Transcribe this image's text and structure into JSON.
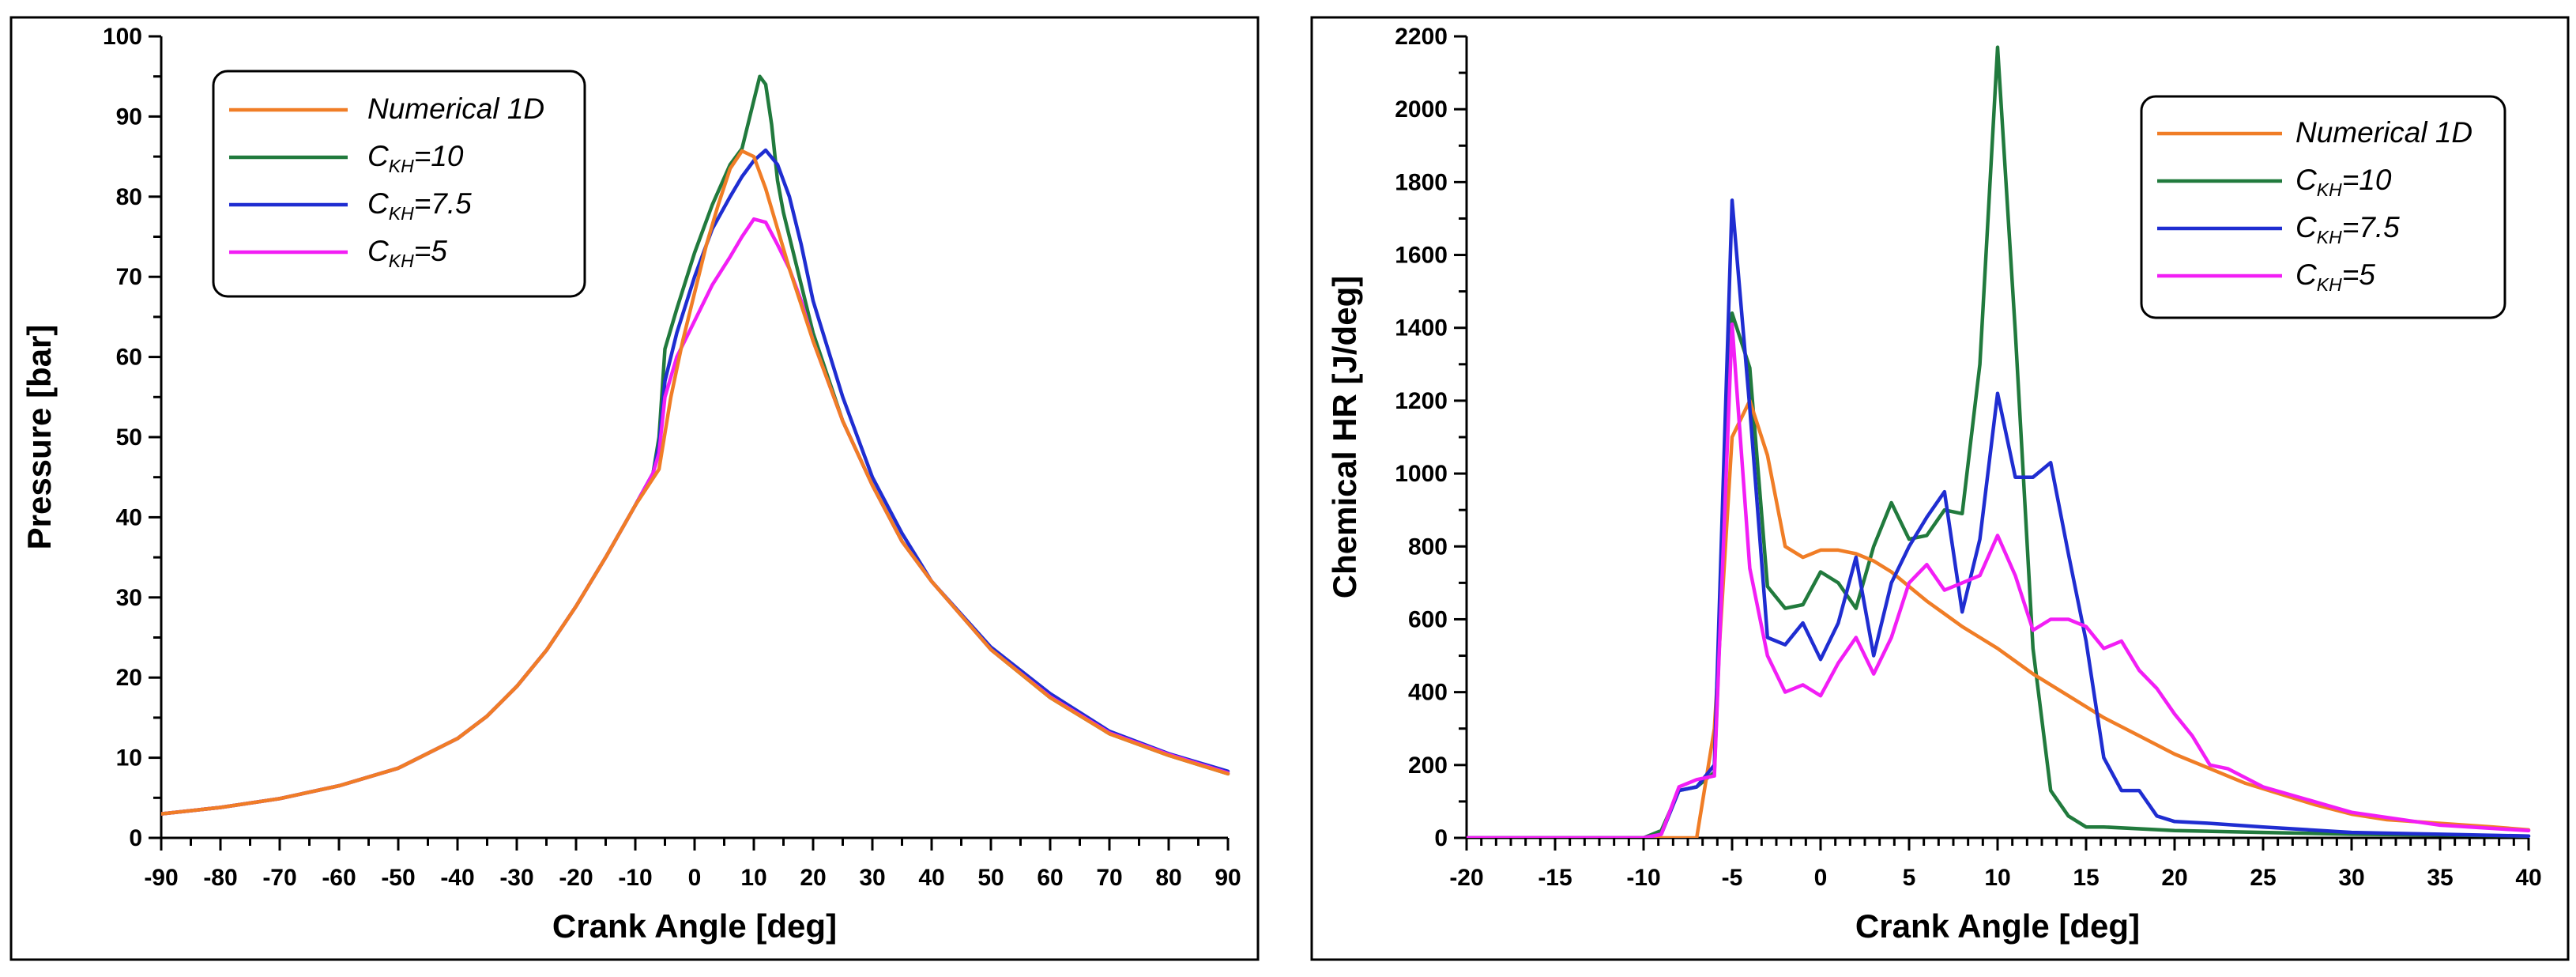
{
  "chart_data": [
    {
      "type": "line",
      "xlabel": "Crank Angle [deg]",
      "ylabel": "Pressure [bar]",
      "xlim": [
        -90,
        90
      ],
      "ylim": [
        0,
        100
      ],
      "xticks": [
        -90,
        -80,
        -70,
        -60,
        -50,
        -40,
        -30,
        -20,
        -10,
        0,
        10,
        20,
        30,
        40,
        50,
        60,
        70,
        80,
        90
      ],
      "yticks": [
        0,
        10,
        20,
        30,
        40,
        50,
        60,
        70,
        80,
        90,
        100
      ],
      "legend_position": "top-left",
      "series": [
        {
          "name": "Numerical 1D",
          "label_main": "Numerical 1D",
          "label_sub": "",
          "label_tail": "",
          "color": "#f07d26",
          "x": [
            -90,
            -80,
            -70,
            -60,
            -50,
            -40,
            -35,
            -30,
            -25,
            -20,
            -15,
            -10,
            -6,
            -4,
            -2,
            0,
            2,
            4,
            6,
            8,
            10,
            12,
            14,
            16,
            20,
            25,
            30,
            35,
            40,
            50,
            60,
            70,
            80,
            90
          ],
          "y": [
            3,
            3.8,
            4.9,
            6.5,
            8.7,
            12.4,
            15.2,
            18.9,
            23.4,
            28.9,
            35,
            41.5,
            46,
            55,
            62,
            68,
            74,
            79,
            83.5,
            85.7,
            85,
            81,
            76,
            71,
            62,
            52,
            44,
            37,
            32,
            23.5,
            17.5,
            13,
            10.3,
            8
          ]
        },
        {
          "name": "C_KH=10",
          "label_main": "C",
          "label_sub": "KH",
          "label_tail": "=10",
          "color": "#217a3d",
          "x": [
            -90,
            -80,
            -70,
            -60,
            -50,
            -40,
            -35,
            -30,
            -25,
            -20,
            -15,
            -10,
            -7,
            -6,
            -5,
            -3,
            0,
            3,
            6,
            8,
            10,
            11,
            12,
            13,
            14,
            15,
            17,
            20,
            25,
            30,
            35,
            40,
            50,
            60,
            70,
            80,
            90
          ],
          "y": [
            3,
            3.8,
            4.9,
            6.5,
            8.7,
            12.4,
            15.2,
            18.9,
            23.4,
            28.9,
            35,
            41.5,
            45.5,
            50,
            61,
            66,
            73,
            79,
            84,
            86,
            92,
            95,
            94,
            89,
            82,
            78,
            72,
            63,
            52,
            44,
            37,
            32,
            23.5,
            17.5,
            13,
            10.3,
            8
          ]
        },
        {
          "name": "C_KH=7.5",
          "label_main": "C",
          "label_sub": "KH",
          "label_tail": "=7.5",
          "color": "#1f2dd1",
          "x": [
            -90,
            -80,
            -70,
            -60,
            -50,
            -40,
            -35,
            -30,
            -25,
            -20,
            -15,
            -10,
            -7,
            -6,
            -5,
            -3,
            0,
            3,
            6,
            8,
            10,
            12,
            14,
            16,
            18,
            20,
            25,
            30,
            35,
            40,
            50,
            60,
            70,
            80,
            90
          ],
          "y": [
            3,
            3.8,
            4.9,
            6.5,
            8.7,
            12.4,
            15.2,
            18.9,
            23.4,
            28.9,
            35,
            41.5,
            45.5,
            49,
            57,
            63,
            70,
            76,
            80,
            82.5,
            84.5,
            85.8,
            84,
            80,
            74,
            67,
            55,
            45,
            38,
            32,
            23.8,
            18,
            13.3,
            10.5,
            8.3
          ]
        },
        {
          "name": "C_KH=5",
          "label_main": "C",
          "label_sub": "KH",
          "label_tail": "=5",
          "color": "#f21ef5",
          "x": [
            -90,
            -80,
            -70,
            -60,
            -50,
            -40,
            -35,
            -30,
            -25,
            -20,
            -15,
            -10,
            -7,
            -6,
            -5,
            -3,
            0,
            3,
            6,
            8,
            10,
            12,
            14,
            16,
            18,
            20,
            25,
            30,
            35,
            40,
            50,
            60,
            70,
            80,
            90
          ],
          "y": [
            3,
            3.8,
            4.9,
            6.5,
            8.7,
            12.4,
            15.2,
            18.9,
            23.4,
            28.9,
            35,
            41.5,
            45.5,
            48,
            55,
            60,
            64.5,
            69,
            72.5,
            75,
            77.2,
            76.8,
            74,
            71,
            67,
            62,
            52,
            44,
            37,
            32,
            23.5,
            17.6,
            13.1,
            10.4,
            8.1
          ]
        }
      ]
    },
    {
      "type": "line",
      "xlabel": "Crank Angle [deg]",
      "ylabel": "Chemical HR [J/deg]",
      "xlim": [
        -20,
        40
      ],
      "ylim": [
        0,
        2200
      ],
      "xticks": [
        -20,
        -15,
        -10,
        -5,
        0,
        5,
        10,
        15,
        20,
        25,
        30,
        35,
        40
      ],
      "yticks": [
        0,
        200,
        400,
        600,
        800,
        1000,
        1200,
        1400,
        1600,
        1800,
        2000,
        2200
      ],
      "legend_position": "top-right",
      "series": [
        {
          "name": "Numerical 1D",
          "label_main": "Numerical 1D",
          "label_sub": "",
          "label_tail": "",
          "color": "#f07d26",
          "x": [
            -20,
            -8,
            -7,
            -6,
            -5,
            -4,
            -3,
            -2,
            -1,
            0,
            1,
            2,
            3,
            4,
            5,
            6,
            7,
            8,
            9,
            10,
            12,
            14,
            16,
            18,
            20,
            22,
            24,
            26,
            28,
            30,
            32,
            35,
            38,
            40
          ],
          "y": [
            0,
            0,
            0,
            300,
            1100,
            1200,
            1050,
            800,
            770,
            790,
            790,
            780,
            760,
            730,
            690,
            650,
            615,
            580,
            550,
            520,
            450,
            390,
            330,
            280,
            230,
            190,
            150,
            120,
            90,
            65,
            50,
            40,
            30,
            22
          ]
        },
        {
          "name": "C_KH=10",
          "label_main": "C",
          "label_sub": "KH",
          "label_tail": "=10",
          "color": "#217a3d",
          "x": [
            -20,
            -10,
            -9,
            -8,
            -7,
            -6,
            -5,
            -4,
            -3,
            -2,
            -1,
            0,
            1,
            2,
            3,
            4,
            5,
            6,
            7,
            8,
            9,
            10,
            11,
            12,
            13,
            14,
            15,
            16,
            20,
            25,
            30,
            35,
            40
          ],
          "y": [
            0,
            0,
            20,
            130,
            140,
            180,
            1440,
            1290,
            690,
            630,
            640,
            730,
            700,
            630,
            800,
            920,
            820,
            830,
            900,
            890,
            1300,
            2170,
            1390,
            520,
            130,
            60,
            30,
            30,
            20,
            15,
            10,
            8,
            5
          ]
        },
        {
          "name": "C_KH=7.5",
          "label_main": "C",
          "label_sub": "KH",
          "label_tail": "=7.5",
          "color": "#1f2dd1",
          "x": [
            -20,
            -10,
            -9,
            -8,
            -7,
            -6,
            -5,
            -4,
            -3,
            -2,
            -1,
            0,
            1,
            2,
            3,
            4,
            5,
            6,
            7,
            8,
            9,
            10,
            11,
            12,
            13,
            14,
            15,
            16,
            17,
            18,
            19,
            20,
            22,
            25,
            30,
            35,
            40
          ],
          "y": [
            0,
            0,
            10,
            130,
            140,
            200,
            1750,
            1180,
            550,
            530,
            590,
            490,
            590,
            770,
            500,
            700,
            800,
            880,
            950,
            620,
            820,
            1220,
            990,
            990,
            1030,
            780,
            540,
            220,
            130,
            130,
            60,
            45,
            40,
            30,
            15,
            10,
            5
          ]
        },
        {
          "name": "C_KH=5",
          "label_main": "C",
          "label_sub": "KH",
          "label_tail": "=5",
          "color": "#f21ef5",
          "x": [
            -20,
            -10,
            -9,
            -8,
            -7,
            -6,
            -5,
            -4,
            -3,
            -2,
            -1,
            0,
            1,
            2,
            3,
            4,
            5,
            6,
            7,
            8,
            9,
            10,
            11,
            12,
            13,
            14,
            15,
            16,
            17,
            18,
            19,
            20,
            21,
            22,
            23,
            25,
            30,
            35,
            40
          ],
          "y": [
            0,
            0,
            10,
            140,
            160,
            170,
            1410,
            740,
            500,
            400,
            420,
            390,
            480,
            550,
            450,
            550,
            700,
            750,
            680,
            700,
            720,
            830,
            720,
            570,
            600,
            600,
            580,
            520,
            540,
            460,
            410,
            340,
            280,
            200,
            190,
            140,
            70,
            35,
            20
          ]
        }
      ]
    }
  ]
}
